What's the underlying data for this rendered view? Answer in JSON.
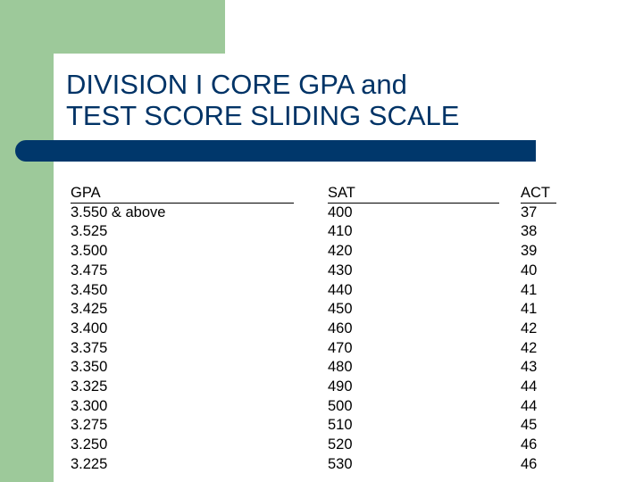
{
  "title": {
    "line1": "DIVISION I CORE GPA and",
    "line2": "TEST SCORE SLIDING SCALE"
  },
  "colors": {
    "accent_green": "#9dc99a",
    "title_text": "#003366",
    "title_bar": "#00376b"
  },
  "table": {
    "headers": [
      "GPA",
      "SAT",
      "ACT"
    ],
    "gpa": [
      "3.550 & above",
      "3.525",
      "3.500",
      "3.475",
      "3.450",
      "3.425",
      "3.400",
      "3.375",
      "3.350",
      "3.325",
      "3.300",
      "3.275",
      "3.250",
      "3.225"
    ],
    "sat": [
      "400",
      "410",
      "420",
      "430",
      "440",
      "450",
      "460",
      "470",
      "480",
      "490",
      "500",
      "510",
      "520",
      "530"
    ],
    "act": [
      "37",
      "38",
      "39",
      "40",
      "41",
      "41",
      "42",
      "42",
      "43",
      "44",
      "44",
      "45",
      "46",
      "46"
    ]
  }
}
